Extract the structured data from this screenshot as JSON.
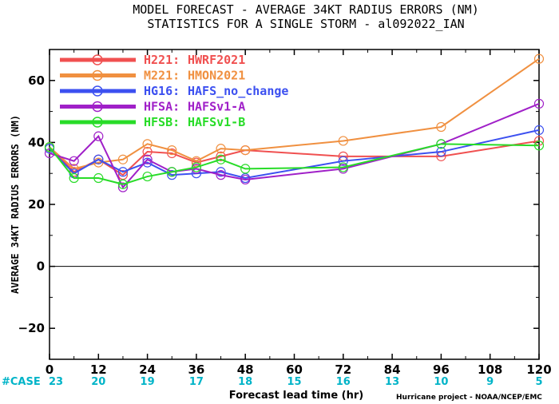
{
  "chart_data": {
    "type": "line",
    "title": "MODEL FORECAST - AVERAGE 34KT RADIUS ERRORS (NM)",
    "subtitle": "STATISTICS FOR A SINGLE STORM - al092022_IAN",
    "ylabel": "AVERAGE 34KT RADIUS ERRORS (NM)",
    "xlabel": "Forecast lead time (hr)",
    "credit": "Hurricane project - NOAA/NCEP/EMC",
    "xlim": [
      0,
      120
    ],
    "ylim": [
      -30,
      70
    ],
    "x_ticks": [
      0,
      12,
      24,
      36,
      48,
      60,
      72,
      84,
      96,
      108,
      120
    ],
    "y_ticks": [
      -20,
      0,
      20,
      40,
      60
    ],
    "zero_line": 0,
    "legend_position": "top-left",
    "case_label": "#CASE",
    "cases": [
      {
        "x": 0,
        "label": "23"
      },
      {
        "x": 12,
        "label": "20"
      },
      {
        "x": 24,
        "label": "19"
      },
      {
        "x": 36,
        "label": "17"
      },
      {
        "x": 48,
        "label": "18"
      },
      {
        "x": 60,
        "label": "15"
      },
      {
        "x": 72,
        "label": "16"
      },
      {
        "x": 84,
        "label": "13"
      },
      {
        "x": 96,
        "label": "10"
      },
      {
        "x": 108,
        "label": "9"
      },
      {
        "x": 120,
        "label": "5"
      }
    ],
    "series": [
      {
        "name": "H221:",
        "desc": "HWRF2021",
        "color": "#f05050",
        "points": [
          [
            0,
            38.5
          ],
          [
            6,
            30.5
          ],
          [
            12,
            34.5
          ],
          [
            18,
            29.5
          ],
          [
            24,
            37
          ],
          [
            30,
            36.5
          ],
          [
            36,
            33.5
          ],
          [
            42,
            35.5
          ],
          [
            48,
            37.5
          ],
          [
            72,
            35.5
          ],
          [
            96,
            35.5
          ],
          [
            120,
            40.5
          ]
        ]
      },
      {
        "name": "M221:",
        "desc": "HMON2021",
        "color": "#f09040",
        "points": [
          [
            0,
            38.5
          ],
          [
            6,
            31.5
          ],
          [
            12,
            33.5
          ],
          [
            18,
            34.5
          ],
          [
            24,
            39.5
          ],
          [
            30,
            37.5
          ],
          [
            36,
            34
          ],
          [
            42,
            38
          ],
          [
            48,
            37.5
          ],
          [
            72,
            40.5
          ],
          [
            96,
            45
          ],
          [
            120,
            67
          ]
        ]
      },
      {
        "name": "HG16:",
        "desc": "HAFS_no_change",
        "color": "#3c50f0",
        "points": [
          [
            0,
            38
          ],
          [
            6,
            30
          ],
          [
            12,
            34.5
          ],
          [
            18,
            30.5
          ],
          [
            24,
            33.5
          ],
          [
            30,
            29.5
          ],
          [
            36,
            30
          ],
          [
            42,
            30.5
          ],
          [
            48,
            28.5
          ],
          [
            72,
            34
          ],
          [
            96,
            37
          ],
          [
            120,
            44
          ]
        ]
      },
      {
        "name": "HFSA:",
        "desc": "HAFSv1-A",
        "color": "#a020c8",
        "points": [
          [
            0,
            36.5
          ],
          [
            6,
            34
          ],
          [
            12,
            42
          ],
          [
            18,
            25.5
          ],
          [
            24,
            34.5
          ],
          [
            30,
            30.5
          ],
          [
            36,
            31.5
          ],
          [
            42,
            29.5
          ],
          [
            48,
            28
          ],
          [
            72,
            31.5
          ],
          [
            96,
            39.5
          ],
          [
            120,
            52.5
          ]
        ]
      },
      {
        "name": "HFSB:",
        "desc": "HAFSv1-B",
        "color": "#28dc28",
        "points": [
          [
            0,
            38.5
          ],
          [
            6,
            28.5
          ],
          [
            12,
            28.5
          ],
          [
            18,
            26.5
          ],
          [
            24,
            29
          ],
          [
            30,
            30.5
          ],
          [
            36,
            32
          ],
          [
            42,
            34.5
          ],
          [
            48,
            31.5
          ],
          [
            72,
            32
          ],
          [
            96,
            39.5
          ],
          [
            120,
            39
          ]
        ]
      }
    ]
  }
}
